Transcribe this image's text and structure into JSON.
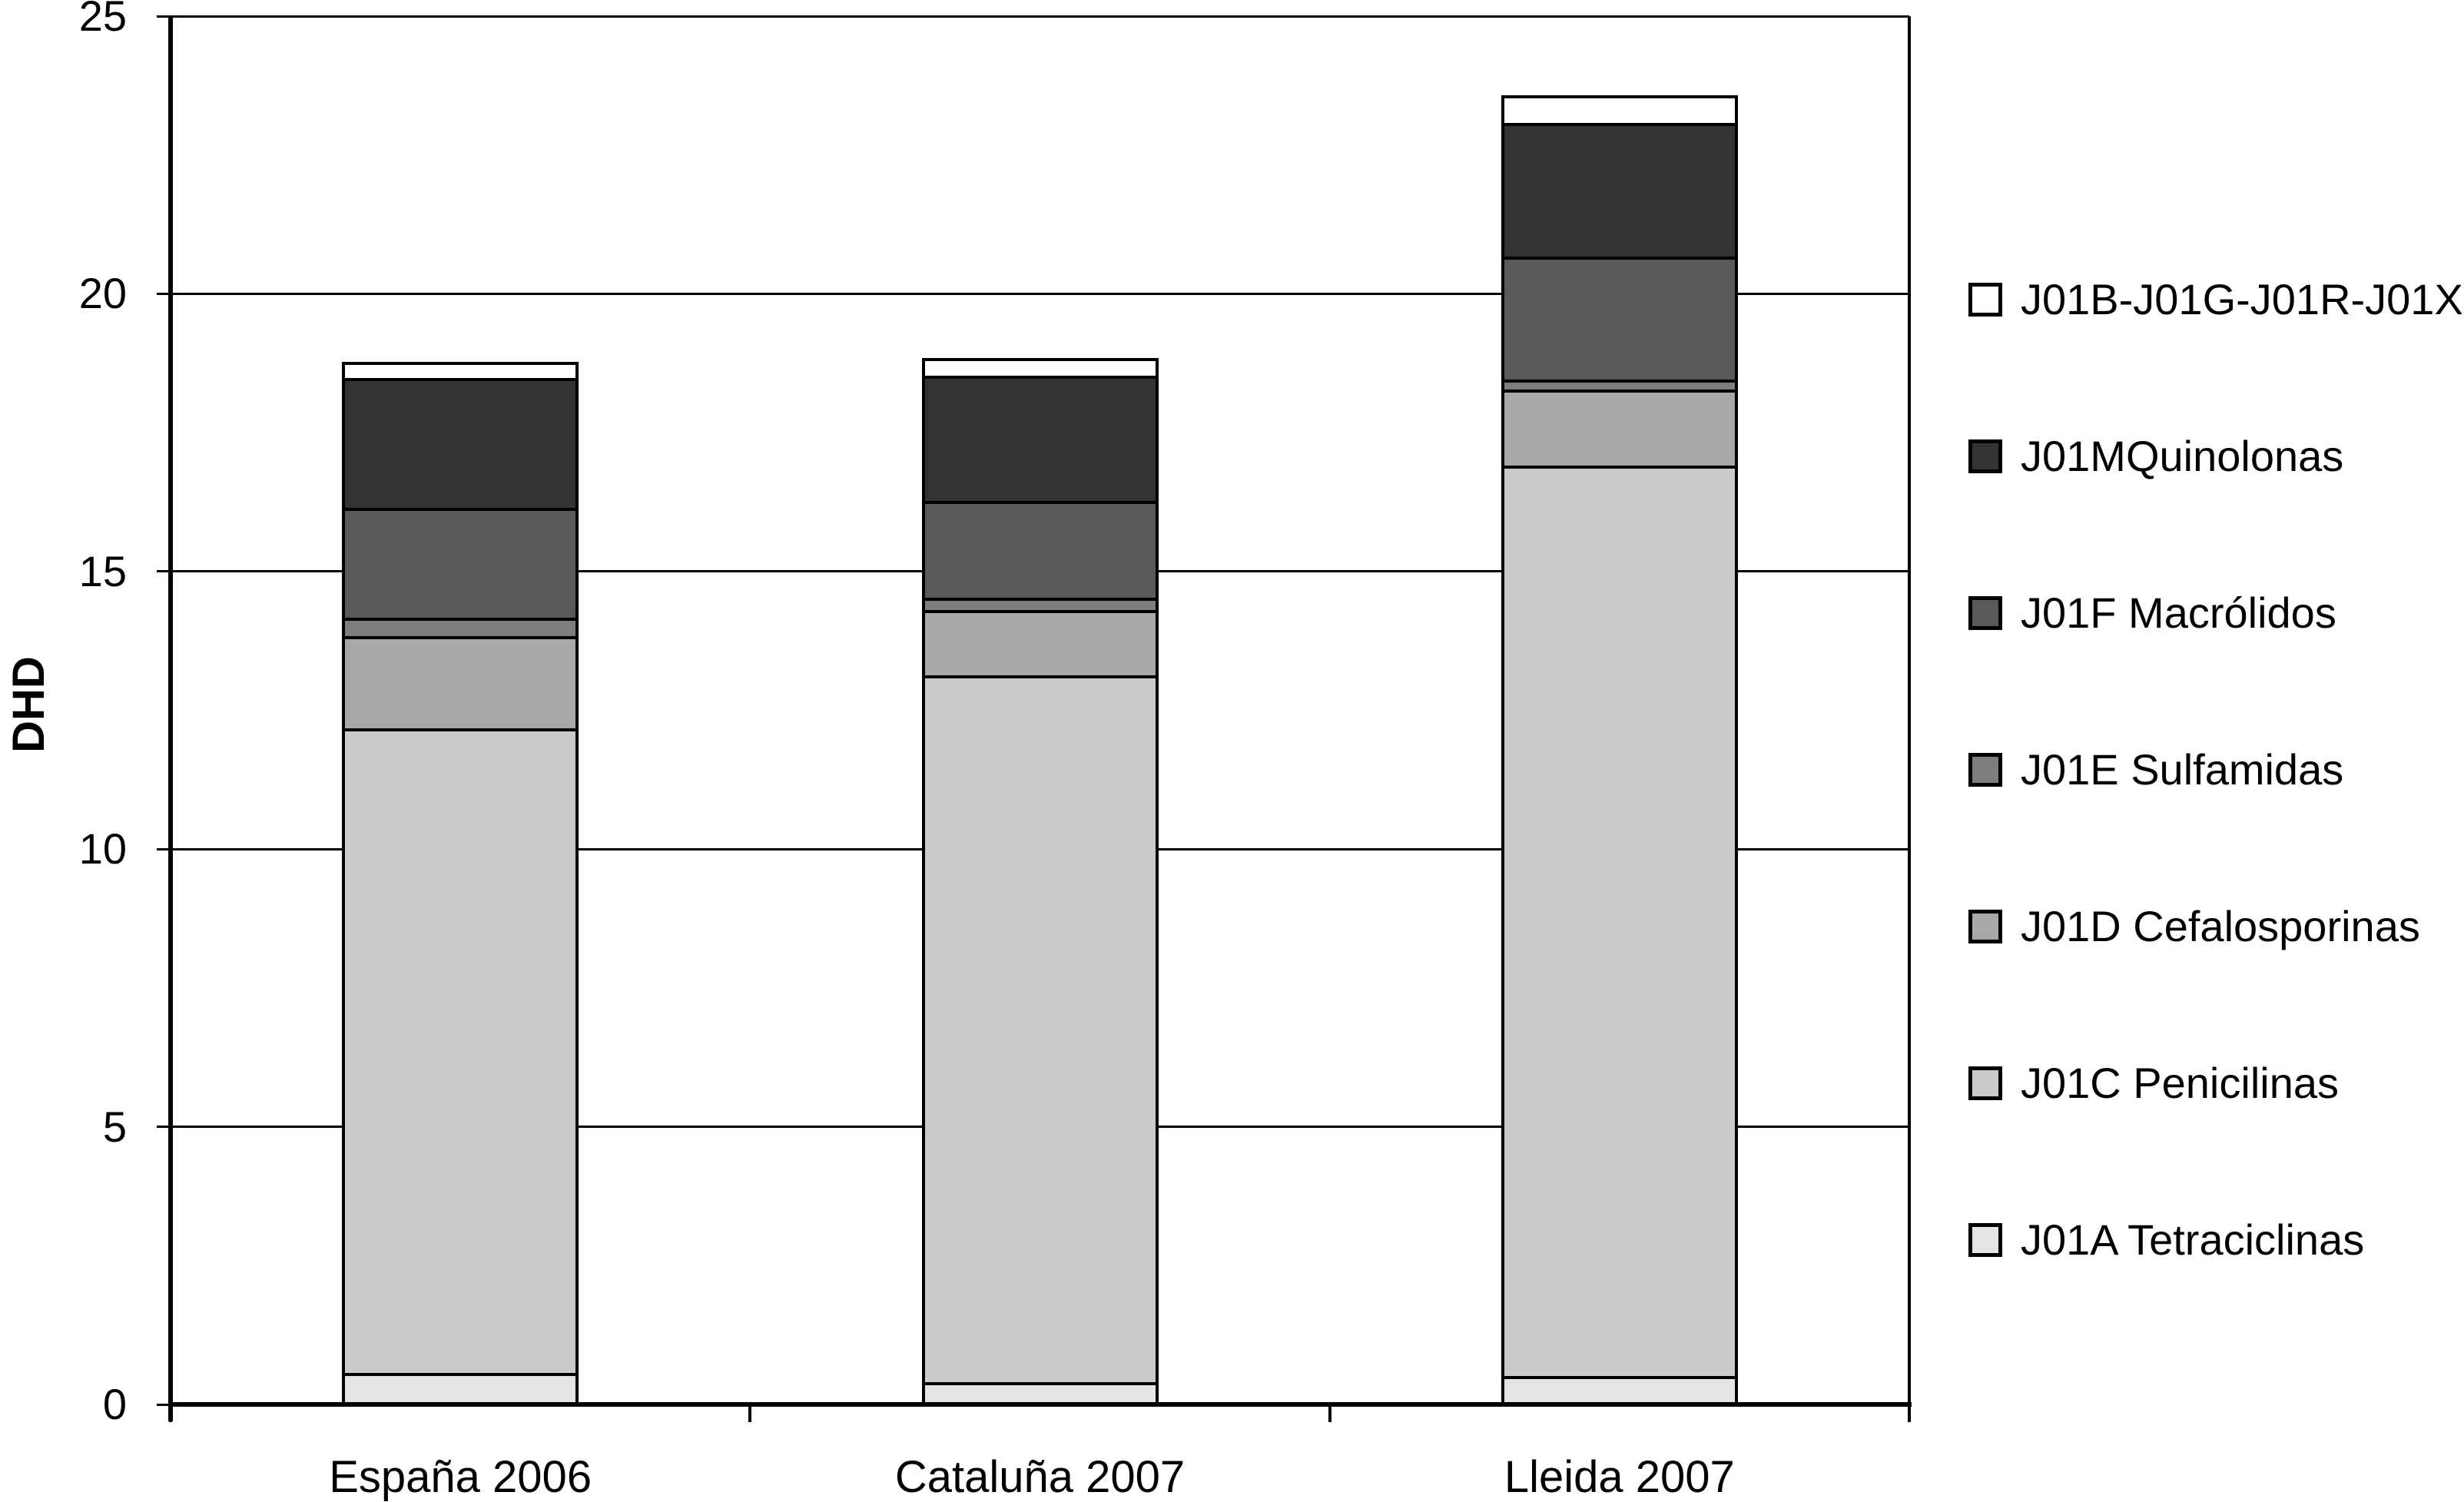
{
  "figure": {
    "background": "#ffffff",
    "text_color": "#000000"
  },
  "y_axis": {
    "title": "DHD",
    "ticks": [
      0,
      5,
      10,
      15,
      20,
      25
    ]
  },
  "chart_data": {
    "type": "bar",
    "stacked": true,
    "title": "",
    "ylabel": "DHD",
    "xlabel": "",
    "ylim": [
      0,
      25
    ],
    "grid": true,
    "legend_position": "right",
    "categories": [
      "España 2006",
      "Cataluña 2007",
      "Lleida 2007"
    ],
    "series": [
      {
        "name": "J01A Tetraciclinas",
        "color": "#e4e4e4",
        "values": [
          0.57,
          0.4,
          0.51
        ]
      },
      {
        "name": "J01C Penicilinas",
        "color": "#cbcbcb",
        "values": [
          11.6,
          12.73,
          16.4
        ]
      },
      {
        "name": "J01D Cefalosporinas",
        "color": "#a8a8a8",
        "values": [
          1.66,
          1.17,
          1.37
        ]
      },
      {
        "name": "J01E Sulfamidas",
        "color": "#7d7d7d",
        "values": [
          0.34,
          0.22,
          0.17
        ]
      },
      {
        "name": "J01F Macrólidos",
        "color": "#595959",
        "values": [
          1.98,
          1.75,
          2.22
        ]
      },
      {
        "name": "J01MQuinolonas",
        "color": "#333333",
        "values": [
          2.33,
          2.25,
          2.41
        ]
      },
      {
        "name": "J01B-J01G-J01R-J01X",
        "color": "#ffffff",
        "values": [
          0.29,
          0.33,
          0.5
        ]
      }
    ],
    "totals": [
      18.77,
      18.85,
      23.58
    ],
    "legend_order_top_to_bottom": [
      "J01B-J01G-J01R-J01X",
      "J01MQuinolonas",
      "J01F Macrólidos",
      "J01E Sulfamidas",
      "J01D Cefalosporinas",
      "J01C Penicilinas",
      "J01A Tetraciclinas"
    ]
  }
}
